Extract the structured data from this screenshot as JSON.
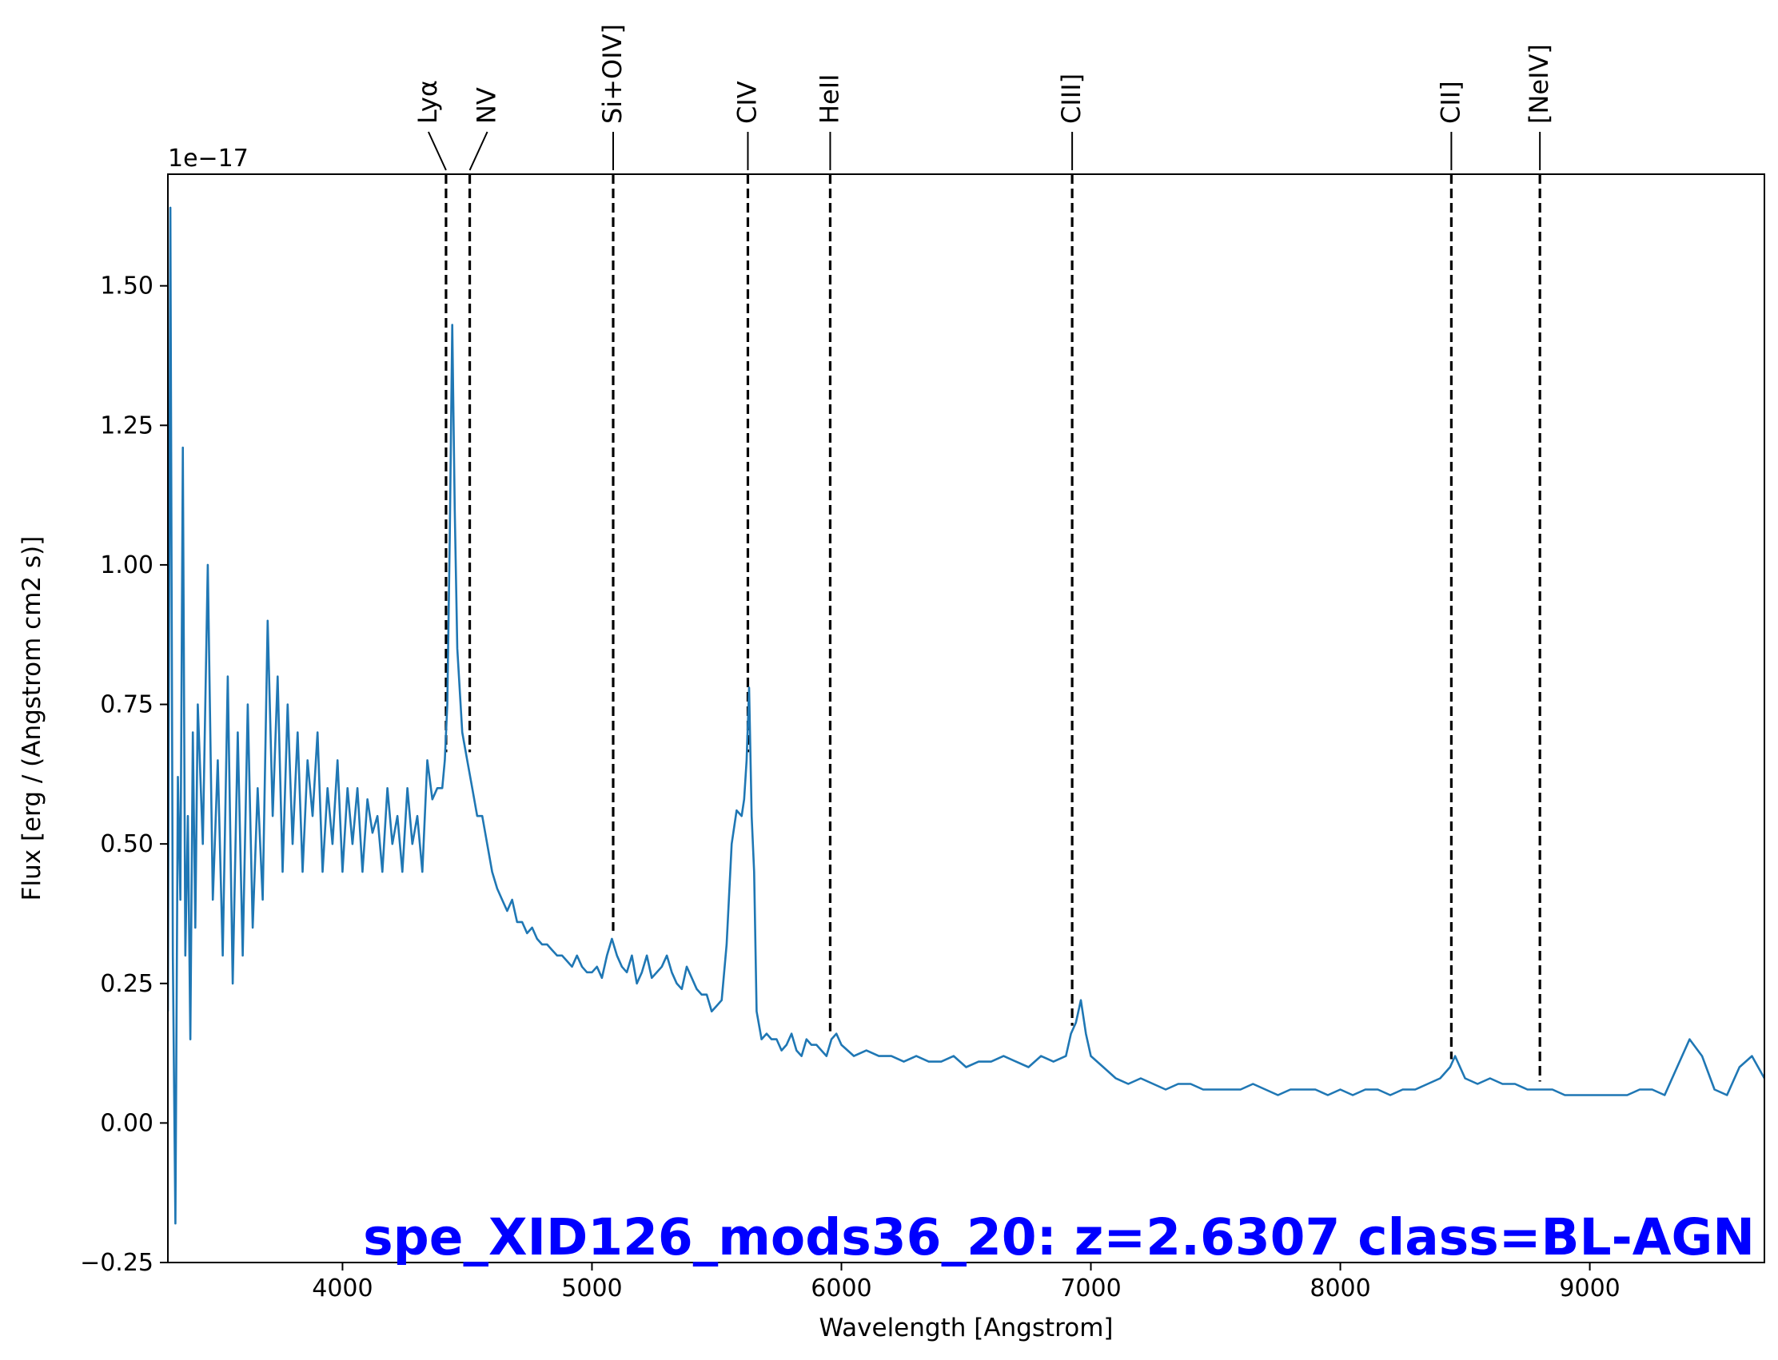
{
  "chart_data": {
    "type": "line",
    "title": "spe_XID126_mods36_20: z=2.6307 class=BL-AGN",
    "xlabel": "Wavelength [Angstrom]",
    "ylabel": "Flux [erg / (Angstrom cm2 s)]",
    "y_offset_label": "1e−17",
    "xlim": [
      3300,
      9700
    ],
    "ylim": [
      -0.25,
      1.7
    ],
    "xticks": [
      4000,
      5000,
      6000,
      7000,
      8000,
      9000
    ],
    "xtick_labels": [
      "4000",
      "5000",
      "6000",
      "7000",
      "8000",
      "9000"
    ],
    "yticks": [
      -0.25,
      0.0,
      0.25,
      0.5,
      0.75,
      1.0,
      1.25,
      1.5
    ],
    "ytick_labels": [
      "−0.25",
      "0.00",
      "0.25",
      "0.50",
      "0.75",
      "1.00",
      "1.25",
      "1.50"
    ],
    "grid": false,
    "colors": {
      "series": "#1f77b4",
      "lines": "#000000",
      "title": "#0000ff"
    },
    "series": [
      {
        "x": [
          3300,
          3310,
          3320,
          3330,
          3340,
          3350,
          3360,
          3370,
          3380,
          3390,
          3400,
          3410,
          3420,
          3440,
          3460,
          3480,
          3500,
          3520,
          3540,
          3560,
          3580,
          3600,
          3620,
          3640,
          3660,
          3680,
          3700,
          3720,
          3740,
          3760,
          3780,
          3800,
          3820,
          3840,
          3860,
          3880,
          3900,
          3920,
          3940,
          3960,
          3980,
          4000,
          4020,
          4040,
          4060,
          4080,
          4100,
          4120,
          4140,
          4160,
          4180,
          4200,
          4220,
          4240,
          4260,
          4280,
          4300,
          4320,
          4340,
          4360,
          4380,
          4400,
          4410,
          4420,
          4430,
          4440,
          4450,
          4460,
          4480,
          4500,
          4520,
          4540,
          4560,
          4580,
          4600,
          4620,
          4640,
          4660,
          4680,
          4700,
          4720,
          4740,
          4760,
          4780,
          4800,
          4820,
          4840,
          4860,
          4880,
          4900,
          4920,
          4940,
          4960,
          4980,
          5000,
          5020,
          5040,
          5060,
          5080,
          5100,
          5120,
          5140,
          5160,
          5180,
          5200,
          5220,
          5240,
          5260,
          5280,
          5300,
          5320,
          5340,
          5360,
          5380,
          5400,
          5420,
          5440,
          5460,
          5480,
          5500,
          5520,
          5540,
          5560,
          5580,
          5600,
          5610,
          5620,
          5630,
          5640,
          5650,
          5660,
          5680,
          5700,
          5720,
          5740,
          5760,
          5780,
          5800,
          5820,
          5840,
          5860,
          5880,
          5900,
          5920,
          5940,
          5960,
          5980,
          6000,
          6050,
          6100,
          6150,
          6200,
          6250,
          6300,
          6350,
          6400,
          6450,
          6500,
          6550,
          6600,
          6650,
          6700,
          6750,
          6800,
          6850,
          6900,
          6920,
          6940,
          6960,
          6980,
          7000,
          7050,
          7100,
          7150,
          7200,
          7250,
          7300,
          7350,
          7400,
          7450,
          7500,
          7550,
          7600,
          7650,
          7700,
          7750,
          7800,
          7850,
          7900,
          7950,
          8000,
          8050,
          8100,
          8150,
          8200,
          8250,
          8300,
          8350,
          8400,
          8440,
          8460,
          8500,
          8550,
          8600,
          8650,
          8700,
          8750,
          8800,
          8850,
          8900,
          8950,
          9000,
          9050,
          9100,
          9150,
          9200,
          9250,
          9300,
          9350,
          9400,
          9450,
          9500,
          9550,
          9600,
          9650,
          9700
        ],
        "y": [
          0.2,
          1.64,
          0.3,
          -0.18,
          0.62,
          0.4,
          1.21,
          0.3,
          0.55,
          0.15,
          0.7,
          0.35,
          0.75,
          0.5,
          1.0,
          0.4,
          0.65,
          0.3,
          0.8,
          0.25,
          0.7,
          0.3,
          0.75,
          0.35,
          0.6,
          0.4,
          0.9,
          0.55,
          0.8,
          0.45,
          0.75,
          0.5,
          0.7,
          0.45,
          0.65,
          0.55,
          0.7,
          0.45,
          0.6,
          0.5,
          0.65,
          0.45,
          0.6,
          0.5,
          0.6,
          0.45,
          0.58,
          0.52,
          0.55,
          0.45,
          0.6,
          0.5,
          0.55,
          0.45,
          0.6,
          0.5,
          0.55,
          0.45,
          0.65,
          0.58,
          0.6,
          0.6,
          0.65,
          0.75,
          1.05,
          1.43,
          1.1,
          0.85,
          0.7,
          0.65,
          0.6,
          0.55,
          0.55,
          0.5,
          0.45,
          0.42,
          0.4,
          0.38,
          0.4,
          0.36,
          0.36,
          0.34,
          0.35,
          0.33,
          0.32,
          0.32,
          0.31,
          0.3,
          0.3,
          0.29,
          0.28,
          0.3,
          0.28,
          0.27,
          0.27,
          0.28,
          0.26,
          0.3,
          0.33,
          0.3,
          0.28,
          0.27,
          0.3,
          0.25,
          0.27,
          0.3,
          0.26,
          0.27,
          0.28,
          0.3,
          0.27,
          0.25,
          0.24,
          0.28,
          0.26,
          0.24,
          0.23,
          0.23,
          0.2,
          0.21,
          0.22,
          0.32,
          0.5,
          0.56,
          0.55,
          0.58,
          0.65,
          0.78,
          0.55,
          0.45,
          0.2,
          0.15,
          0.16,
          0.15,
          0.15,
          0.13,
          0.14,
          0.16,
          0.13,
          0.12,
          0.15,
          0.14,
          0.14,
          0.13,
          0.12,
          0.15,
          0.16,
          0.14,
          0.12,
          0.13,
          0.12,
          0.12,
          0.11,
          0.12,
          0.11,
          0.11,
          0.12,
          0.1,
          0.11,
          0.11,
          0.12,
          0.11,
          0.1,
          0.12,
          0.11,
          0.12,
          0.16,
          0.18,
          0.22,
          0.16,
          0.12,
          0.1,
          0.08,
          0.07,
          0.08,
          0.07,
          0.06,
          0.07,
          0.07,
          0.06,
          0.06,
          0.06,
          0.06,
          0.07,
          0.06,
          0.05,
          0.06,
          0.06,
          0.06,
          0.05,
          0.06,
          0.05,
          0.06,
          0.06,
          0.05,
          0.06,
          0.06,
          0.07,
          0.08,
          0.1,
          0.12,
          0.08,
          0.07,
          0.08,
          0.07,
          0.07,
          0.06,
          0.06,
          0.06,
          0.05,
          0.05,
          0.05,
          0.05,
          0.05,
          0.05,
          0.06,
          0.06,
          0.05,
          0.1,
          0.15,
          0.12,
          0.06,
          0.05,
          0.1,
          0.12,
          0.08
        ]
      }
    ],
    "line_markers": [
      {
        "label": "Lyα",
        "x": 4415
      },
      {
        "label": "NV",
        "x": 4510
      },
      {
        "label": "Si+OIV]",
        "x": 5085
      },
      {
        "label": "CIV",
        "x": 5625
      },
      {
        "label": "HeII",
        "x": 5955
      },
      {
        "label": "CIII]",
        "x": 6925
      },
      {
        "label": "CII]",
        "x": 8445
      },
      {
        "label": "[NeIV]",
        "x": 8800
      }
    ]
  }
}
